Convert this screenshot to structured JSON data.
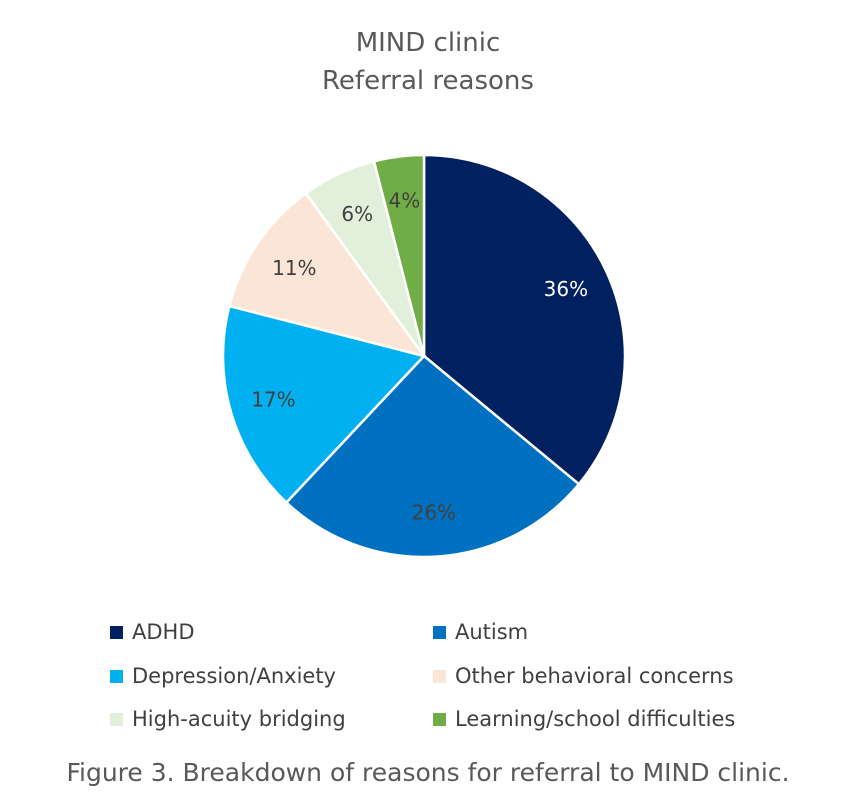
{
  "chart_data": {
    "type": "pie",
    "title": "MIND clinic",
    "subtitle": "Referral reasons",
    "legend_position": "bottom",
    "slices": [
      {
        "name": "ADHD",
        "value": 36,
        "label": "36%",
        "color": "#002060",
        "label_color": "#ffffff"
      },
      {
        "name": "Autism",
        "value": 26,
        "label": "26%",
        "color": "#0070c0",
        "label_color": "#404040"
      },
      {
        "name": "Depression/Anxiety",
        "value": 17,
        "label": "17%",
        "color": "#00b0f0",
        "label_color": "#404040"
      },
      {
        "name": "Other behavioral concerns",
        "value": 11,
        "label": "11%",
        "color": "#fbe5d6",
        "label_color": "#404040"
      },
      {
        "name": "High-acuity bridging",
        "value": 6,
        "label": "6%",
        "color": "#e2efda",
        "label_color": "#404040"
      },
      {
        "name": "Learning/school difficulties",
        "value": 4,
        "label": "4%",
        "color": "#70ad47",
        "label_color": "#404040"
      }
    ]
  },
  "caption": "Figure 3.  Breakdown of reasons for referral to MIND clinic."
}
